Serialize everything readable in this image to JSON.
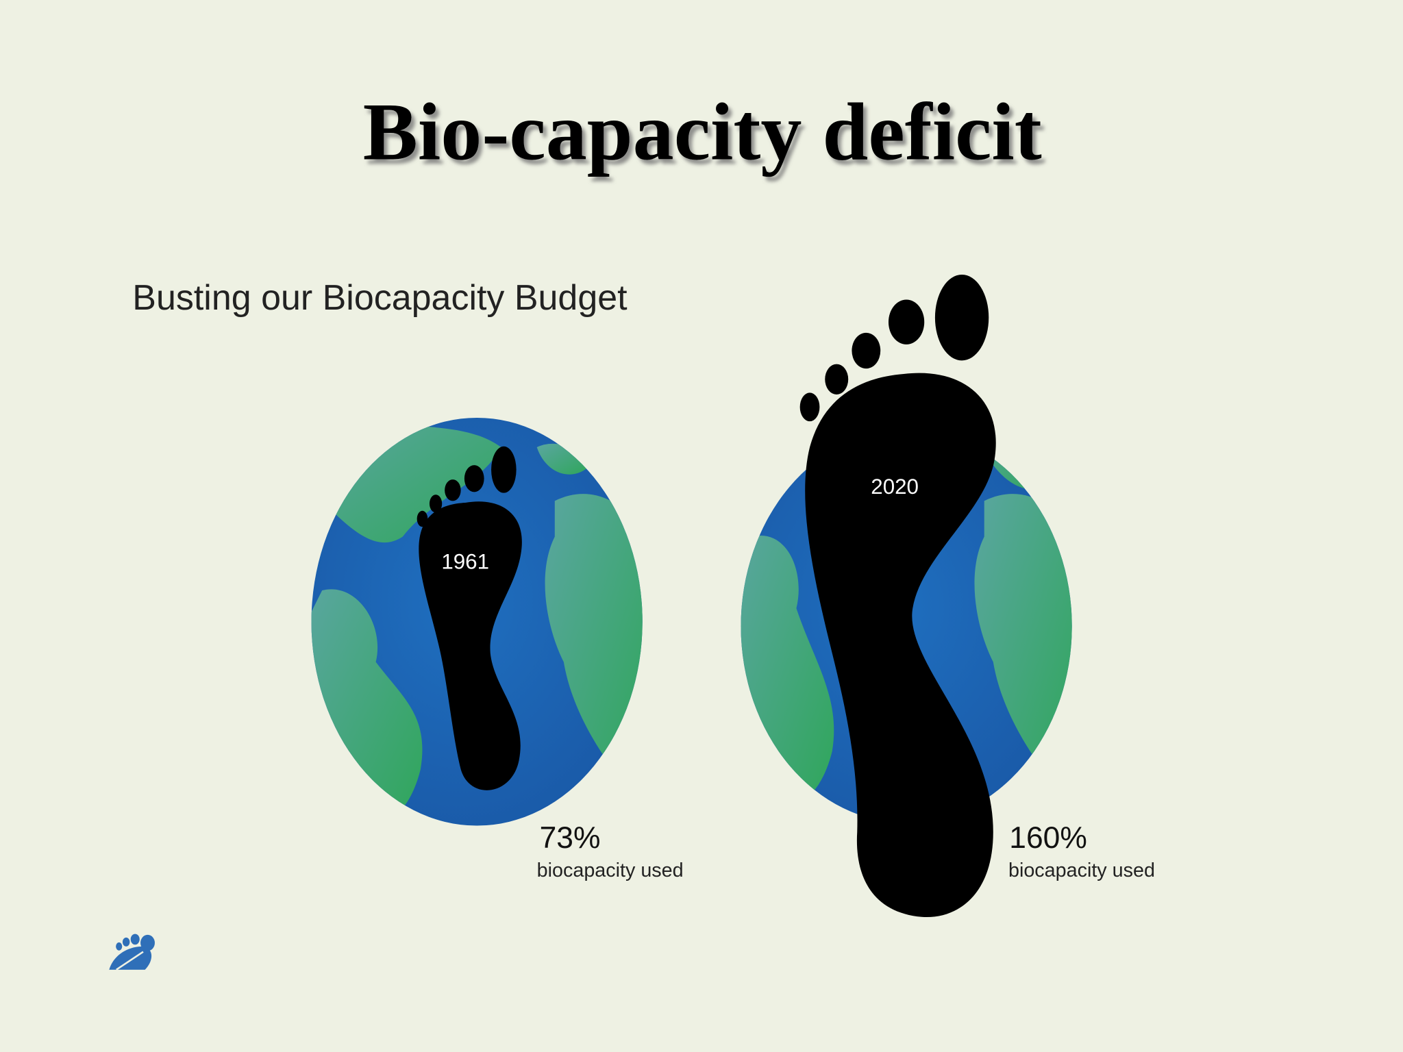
{
  "title": "Bio-capacity deficit",
  "subtitle": "Busting our Biocapacity Budget",
  "panels": [
    {
      "year": "1961",
      "percent": "73%",
      "caption": "biocapacity used"
    },
    {
      "year": "2020",
      "percent": "160%",
      "caption": "biocapacity used"
    }
  ]
}
